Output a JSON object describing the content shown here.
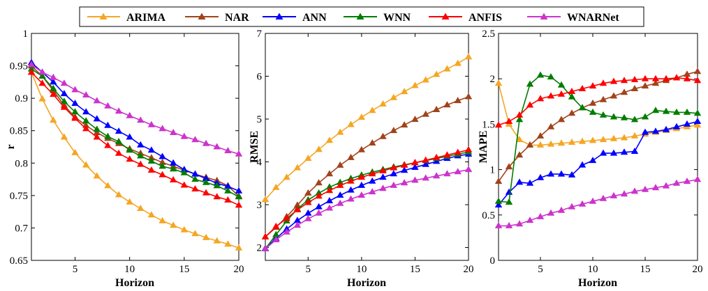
{
  "legend": {
    "entries": [
      {
        "name": "ARIMA",
        "color": "#f5a623"
      },
      {
        "name": "NAR",
        "color": "#a0431b"
      },
      {
        "name": "ANN",
        "color": "#0000ff"
      },
      {
        "name": "WNN",
        "color": "#007d00"
      },
      {
        "name": "ANFIS",
        "color": "#ff0000"
      },
      {
        "name": "WNARNet",
        "color": "#cc33cc"
      }
    ],
    "marker": "triangle",
    "placement": "top-center"
  },
  "chart_data": [
    {
      "type": "line",
      "xlabel": "Horizon",
      "ylabel": "r",
      "xlim": [
        1,
        20
      ],
      "ylim": [
        0.65,
        1
      ],
      "xticks": [
        5,
        10,
        15,
        20
      ],
      "yticks": [
        0.65,
        0.7,
        0.75,
        0.8,
        0.85,
        0.9,
        0.95,
        1
      ],
      "ytick_labels": [
        "0.65",
        "0.7",
        "0.75",
        "0.8",
        "0.85",
        "0.9",
        "0.95",
        "1"
      ],
      "x": [
        1,
        2,
        3,
        4,
        5,
        6,
        7,
        8,
        9,
        10,
        11,
        12,
        13,
        14,
        15,
        16,
        17,
        18,
        19,
        20
      ],
      "series": [
        {
          "name": "ARIMA",
          "values": [
            0.94,
            0.899,
            0.866,
            0.84,
            0.816,
            0.797,
            0.78,
            0.765,
            0.751,
            0.74,
            0.73,
            0.72,
            0.711,
            0.704,
            0.697,
            0.691,
            0.685,
            0.68,
            0.675,
            0.669
          ]
        },
        {
          "name": "NAR",
          "values": [
            0.95,
            0.934,
            0.912,
            0.889,
            0.871,
            0.858,
            0.847,
            0.838,
            0.83,
            0.822,
            0.815,
            0.808,
            0.801,
            0.795,
            0.789,
            0.783,
            0.778,
            0.773,
            0.765,
            0.749
          ]
        },
        {
          "name": "ANN",
          "values": [
            0.955,
            0.94,
            0.925,
            0.907,
            0.892,
            0.879,
            0.868,
            0.858,
            0.849,
            0.84,
            0.828,
            0.82,
            0.81,
            0.8,
            0.79,
            0.783,
            0.776,
            0.769,
            0.764,
            0.757
          ]
        },
        {
          "name": "WNN",
          "values": [
            0.945,
            0.934,
            0.915,
            0.895,
            0.879,
            0.865,
            0.852,
            0.841,
            0.833,
            0.82,
            0.811,
            0.803,
            0.795,
            0.791,
            0.785,
            0.775,
            0.77,
            0.765,
            0.757,
            0.748
          ]
        },
        {
          "name": "ANFIS",
          "values": [
            0.94,
            0.923,
            0.906,
            0.886,
            0.869,
            0.853,
            0.84,
            0.827,
            0.815,
            0.806,
            0.798,
            0.789,
            0.782,
            0.774,
            0.766,
            0.76,
            0.754,
            0.748,
            0.743,
            0.735
          ]
        },
        {
          "name": "WNARNet",
          "values": [
            0.952,
            0.94,
            0.932,
            0.923,
            0.913,
            0.905,
            0.896,
            0.888,
            0.88,
            0.873,
            0.866,
            0.859,
            0.853,
            0.847,
            0.841,
            0.836,
            0.83,
            0.825,
            0.819,
            0.814
          ]
        }
      ]
    },
    {
      "type": "line",
      "xlabel": "Horizon",
      "ylabel": "RMSE",
      "xlim": [
        1,
        20
      ],
      "ylim": [
        1.7,
        7
      ],
      "xticks": [
        5,
        10,
        15,
        20
      ],
      "yticks": [
        2,
        3,
        4,
        5,
        6,
        7
      ],
      "ytick_labels": [
        "2",
        "3",
        "4",
        "5",
        "6",
        "7"
      ],
      "x": [
        1,
        2,
        3,
        4,
        5,
        6,
        7,
        8,
        9,
        10,
        11,
        12,
        13,
        14,
        15,
        16,
        17,
        18,
        19,
        20
      ],
      "series": [
        {
          "name": "ARIMA",
          "values": [
            3.12,
            3.4,
            3.64,
            3.86,
            4.08,
            4.29,
            4.5,
            4.69,
            4.87,
            5.04,
            5.2,
            5.35,
            5.5,
            5.64,
            5.78,
            5.91,
            6.04,
            6.17,
            6.3,
            6.45
          ]
        },
        {
          "name": "NAR",
          "values": [
            2.25,
            2.47,
            2.72,
            2.99,
            3.27,
            3.51,
            3.72,
            3.92,
            4.1,
            4.28,
            4.44,
            4.59,
            4.73,
            4.86,
            4.99,
            5.11,
            5.22,
            5.33,
            5.43,
            5.52
          ]
        },
        {
          "name": "ANN",
          "values": [
            1.98,
            2.21,
            2.43,
            2.63,
            2.8,
            2.95,
            3.09,
            3.22,
            3.34,
            3.45,
            3.55,
            3.64,
            3.72,
            3.8,
            3.87,
            3.94,
            4.01,
            4.08,
            4.14,
            4.18
          ]
        },
        {
          "name": "WNN",
          "values": [
            1.97,
            2.3,
            2.62,
            2.9,
            3.11,
            3.27,
            3.41,
            3.52,
            3.61,
            3.69,
            3.76,
            3.82,
            3.88,
            3.93,
            3.98,
            4.03,
            4.08,
            4.13,
            4.18,
            4.23
          ]
        },
        {
          "name": "ANFIS",
          "values": [
            2.25,
            2.49,
            2.68,
            2.88,
            3.05,
            3.2,
            3.33,
            3.45,
            3.55,
            3.64,
            3.72,
            3.79,
            3.86,
            3.92,
            3.98,
            4.04,
            4.1,
            4.16,
            4.22,
            4.28
          ]
        },
        {
          "name": "WNARNet",
          "values": [
            1.97,
            2.18,
            2.36,
            2.52,
            2.67,
            2.8,
            2.92,
            3.03,
            3.13,
            3.22,
            3.3,
            3.38,
            3.45,
            3.51,
            3.57,
            3.62,
            3.67,
            3.72,
            3.77,
            3.82
          ]
        }
      ]
    },
    {
      "type": "line",
      "xlabel": "Horizon",
      "ylabel": "MAPE",
      "xlim": [
        1,
        20
      ],
      "ylim": [
        0,
        2.5
      ],
      "xticks": [
        5,
        10,
        15,
        20
      ],
      "yticks": [
        0,
        0.5,
        1,
        1.5,
        2,
        2.5
      ],
      "ytick_labels": [
        "0",
        "0.5",
        "1",
        "1.5",
        "2",
        "2.5"
      ],
      "x": [
        1,
        2,
        3,
        4,
        5,
        6,
        7,
        8,
        9,
        10,
        11,
        12,
        13,
        14,
        15,
        16,
        17,
        18,
        19,
        20
      ],
      "series": [
        {
          "name": "ARIMA",
          "values": [
            1.95,
            1.5,
            1.33,
            1.27,
            1.27,
            1.28,
            1.29,
            1.3,
            1.31,
            1.32,
            1.33,
            1.34,
            1.35,
            1.37,
            1.39,
            1.41,
            1.43,
            1.45,
            1.47,
            1.49
          ]
        },
        {
          "name": "NAR",
          "values": [
            0.87,
            1.03,
            1.16,
            1.27,
            1.37,
            1.47,
            1.55,
            1.62,
            1.68,
            1.73,
            1.77,
            1.81,
            1.85,
            1.89,
            1.92,
            1.95,
            1.98,
            2.01,
            2.05,
            2.08
          ]
        },
        {
          "name": "ANN",
          "values": [
            0.61,
            0.75,
            0.86,
            0.85,
            0.91,
            0.95,
            0.95,
            0.94,
            1.05,
            1.1,
            1.18,
            1.18,
            1.19,
            1.2,
            1.41,
            1.42,
            1.44,
            1.47,
            1.5,
            1.53
          ]
        },
        {
          "name": "WNN",
          "values": [
            0.65,
            0.64,
            1.55,
            1.94,
            2.04,
            2.02,
            1.93,
            1.8,
            1.68,
            1.63,
            1.6,
            1.58,
            1.57,
            1.55,
            1.58,
            1.65,
            1.64,
            1.63,
            1.63,
            1.62
          ]
        },
        {
          "name": "ANFIS",
          "values": [
            1.49,
            1.53,
            1.6,
            1.71,
            1.78,
            1.81,
            1.83,
            1.86,
            1.89,
            1.92,
            1.95,
            1.97,
            1.98,
            1.99,
            2.0,
            2.0,
            2.0,
            2.01,
            2.0,
            1.98
          ]
        },
        {
          "name": "WNARNet",
          "values": [
            0.38,
            0.38,
            0.4,
            0.44,
            0.48,
            0.52,
            0.55,
            0.59,
            0.62,
            0.65,
            0.68,
            0.71,
            0.73,
            0.76,
            0.78,
            0.8,
            0.82,
            0.85,
            0.87,
            0.89
          ]
        }
      ]
    }
  ]
}
